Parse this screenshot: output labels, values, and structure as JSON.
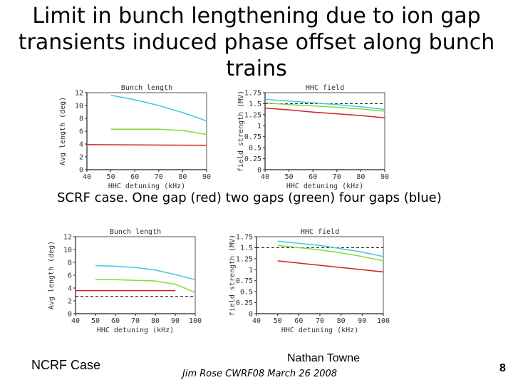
{
  "title": "Limit in bunch lengthening due to ion gap transients induced phase offset along bunch trains",
  "caption": "SCRF case. One gap (red) two gaps (green) four gaps (blue)",
  "ncrf_label": "NCRF Case",
  "author": "Nathan Towne",
  "event": "Jim Rose CWRF08 March 26 2008",
  "page_number": "8",
  "colors": {
    "red": "#d42020",
    "green": "#7fdc3a",
    "blue": "#40c8ea"
  },
  "chart_data": [
    {
      "type": "line",
      "title": "Bunch length",
      "xlabel": "HHC detuning (kHz)",
      "ylabel": "Avg length (deg)",
      "xlim": [
        40,
        90
      ],
      "ylim": [
        0,
        12
      ],
      "xticks": [
        "40",
        "50",
        "60",
        "70",
        "80",
        "90"
      ],
      "yticks": [
        "0",
        "2",
        "4",
        "6",
        "8",
        "10",
        "12"
      ],
      "series": [
        {
          "name": "One gap",
          "color": "red",
          "x": [
            40,
            90
          ],
          "y": [
            3.9,
            3.8
          ]
        },
        {
          "name": "Two gaps",
          "color": "green",
          "x": [
            50,
            60,
            70,
            80,
            90
          ],
          "y": [
            6.3,
            6.3,
            6.3,
            6.1,
            5.5
          ]
        },
        {
          "name": "Four gaps",
          "color": "blue",
          "x": [
            50,
            60,
            70,
            80,
            90
          ],
          "y": [
            11.6,
            10.9,
            10.0,
            8.9,
            7.6
          ]
        }
      ]
    },
    {
      "type": "line",
      "title": "HHC field",
      "xlabel": "HHC detuning (kHz)",
      "ylabel": "field strength (MV)",
      "xlim": [
        40,
        90
      ],
      "ylim": [
        0,
        1.75
      ],
      "xticks": [
        "40",
        "50",
        "60",
        "70",
        "80",
        "90"
      ],
      "yticks": [
        "0",
        "0.25",
        "0.5",
        "0.75",
        "1",
        "1.25",
        "1.5",
        "1.75"
      ],
      "reference_y": 1.5,
      "series": [
        {
          "name": "One gap",
          "color": "red",
          "x": [
            40,
            50,
            60,
            70,
            80,
            90
          ],
          "y": [
            1.4,
            1.36,
            1.31,
            1.27,
            1.23,
            1.18
          ]
        },
        {
          "name": "Two gaps",
          "color": "green",
          "x": [
            40,
            50,
            60,
            70,
            80,
            90
          ],
          "y": [
            1.52,
            1.48,
            1.45,
            1.42,
            1.38,
            1.33
          ]
        },
        {
          "name": "Four gaps",
          "color": "blue",
          "x": [
            40,
            50,
            60,
            70,
            80,
            90
          ],
          "y": [
            1.6,
            1.56,
            1.52,
            1.48,
            1.43,
            1.37
          ]
        }
      ]
    },
    {
      "type": "line",
      "title": "Bunch length",
      "xlabel": "HHC detuning (kHz)",
      "ylabel": "Avg length (deg)",
      "xlim": [
        40,
        100
      ],
      "ylim": [
        0,
        12
      ],
      "xticks": [
        "40",
        "50",
        "60",
        "70",
        "80",
        "90",
        "100"
      ],
      "yticks": [
        "0",
        "2",
        "4",
        "6",
        "8",
        "10",
        "12"
      ],
      "reference_y": 2.7,
      "series": [
        {
          "name": "One gap",
          "color": "red",
          "x": [
            40,
            90
          ],
          "y": [
            3.6,
            3.6
          ]
        },
        {
          "name": "Two gaps",
          "color": "green",
          "x": [
            50,
            60,
            70,
            80,
            90,
            100
          ],
          "y": [
            5.3,
            5.3,
            5.2,
            5.1,
            4.6,
            3.3
          ]
        },
        {
          "name": "Four gaps",
          "color": "blue",
          "x": [
            50,
            60,
            70,
            80,
            90,
            100
          ],
          "y": [
            7.5,
            7.4,
            7.2,
            6.8,
            6.1,
            5.3
          ]
        }
      ]
    },
    {
      "type": "line",
      "title": "HHC field",
      "xlabel": "HHC detuning (kHz)",
      "ylabel": "field strength (MV)",
      "xlim": [
        40,
        100
      ],
      "ylim": [
        0,
        1.75
      ],
      "xticks": [
        "40",
        "50",
        "60",
        "70",
        "80",
        "90",
        "100"
      ],
      "yticks": [
        "0",
        "0.25",
        "0.5",
        "0.75",
        "1",
        "1.25",
        "1.5",
        "1.75"
      ],
      "reference_y": 1.5,
      "series": [
        {
          "name": "One gap",
          "color": "red",
          "x": [
            50,
            60,
            70,
            80,
            90,
            100
          ],
          "y": [
            1.2,
            1.15,
            1.1,
            1.05,
            1.0,
            0.95
          ]
        },
        {
          "name": "Two gaps",
          "color": "green",
          "x": [
            50,
            60,
            70,
            80,
            90,
            100
          ],
          "y": [
            1.55,
            1.5,
            1.45,
            1.38,
            1.3,
            1.2
          ]
        },
        {
          "name": "Four gaps",
          "color": "blue",
          "x": [
            50,
            60,
            70,
            80,
            90,
            100
          ],
          "y": [
            1.65,
            1.6,
            1.55,
            1.48,
            1.4,
            1.3
          ]
        }
      ]
    }
  ]
}
